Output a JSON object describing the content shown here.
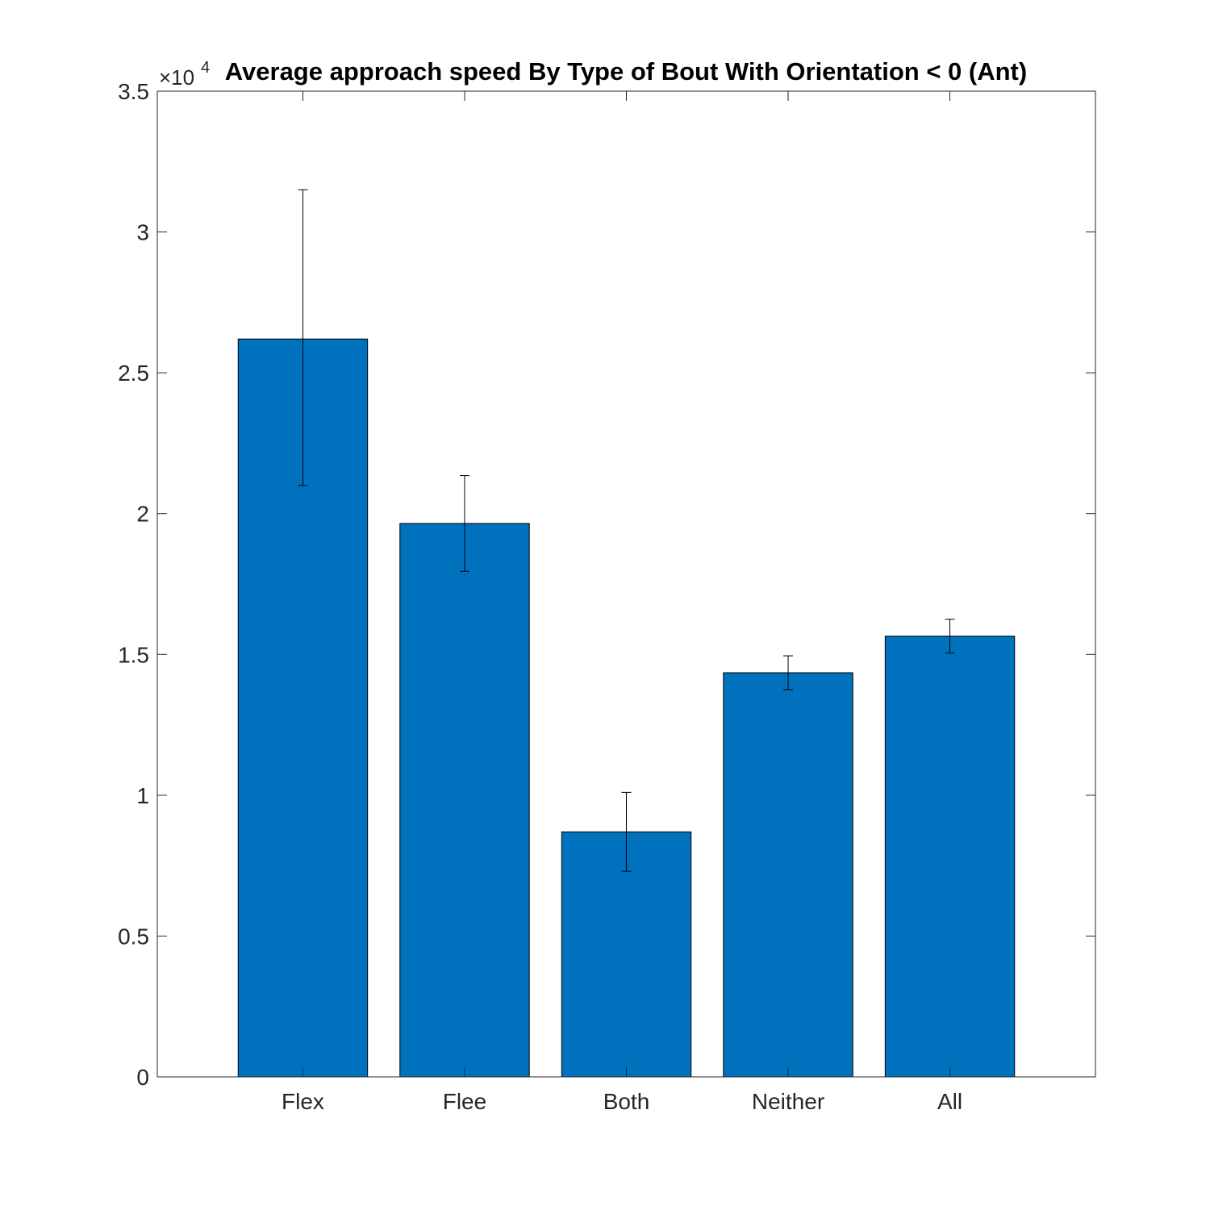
{
  "chart_data": {
    "type": "bar",
    "title": "Average approach speed By Type of Bout With Orientation < 0 (Ant)",
    "categories": [
      "Flex",
      "Flee",
      "Both",
      "Neither",
      "All"
    ],
    "values": [
      26200,
      19650,
      8700,
      14350,
      15650
    ],
    "error_low": [
      21000,
      17950,
      7300,
      13750,
      15050
    ],
    "error_high": [
      31500,
      21350,
      10100,
      14950,
      16250
    ],
    "ylim": [
      0,
      35000
    ],
    "yticks": [
      0,
      5000,
      10000,
      15000,
      20000,
      25000,
      30000,
      35000
    ],
    "ytick_labels": [
      "0",
      "0.5",
      "1",
      "1.5",
      "2",
      "2.5",
      "3",
      "3.5"
    ],
    "y_exponent_label": "×10",
    "y_exponent_power": "4",
    "xlabel": "",
    "ylabel": "",
    "grid": false,
    "bar_color": "#0072bd"
  }
}
